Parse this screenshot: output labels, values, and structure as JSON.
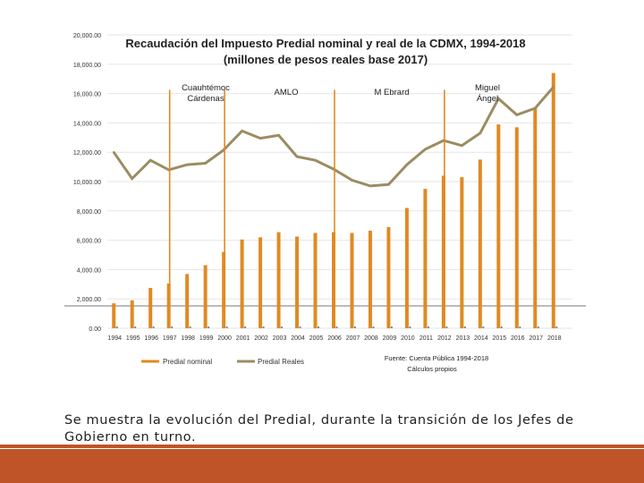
{
  "chart_data": {
    "type": "bar+line",
    "title_line1": "Recaudación del Impuesto Predial nominal y real de la CDMX, 1994-2018",
    "title_line2": "(millones de pesos reales base 2017)",
    "categories": [
      "1994",
      "1995",
      "1996",
      "1997",
      "1998",
      "1999",
      "2000",
      "2001",
      "2002",
      "2003",
      "2004",
      "2005",
      "2006",
      "2007",
      "2008",
      "2009",
      "2010",
      "2011",
      "2012",
      "2013",
      "2014",
      "2015",
      "2016",
      "2017",
      "2018"
    ],
    "series": [
      {
        "name": "Predial nominal",
        "type": "bar",
        "color": "#e08a23",
        "values": [
          1700,
          1900,
          2750,
          3050,
          3700,
          4300,
          5200,
          6050,
          6200,
          6550,
          6250,
          6500,
          6550,
          6500,
          6650,
          6900,
          8200,
          9500,
          10400,
          10300,
          11500,
          13900,
          13700,
          15000,
          17400
        ]
      },
      {
        "name": "Predial Reales",
        "type": "line",
        "color": "#9b8c62",
        "values": [
          12000,
          10200,
          11450,
          10800,
          11150,
          11250,
          12150,
          13450,
          12950,
          13150,
          11700,
          11450,
          10850,
          10100,
          9700,
          9800,
          11150,
          12200,
          12800,
          12450,
          13300,
          15650,
          14550,
          15000,
          16450
        ]
      }
    ],
    "ylim": [
      0,
      20000
    ],
    "yticks": [
      "0.00",
      "2,000.00",
      "4,000.00",
      "6,000.00",
      "8,000.00",
      "10,000.00",
      "12,000.00",
      "14,000.00",
      "16,000.00",
      "18,000.00",
      "20,000.00"
    ],
    "annotations": [
      {
        "text": "Cuauhtémoc Cárdenas",
        "line1": "Cuauhtémoc",
        "line2": "Cárdenas",
        "year": "1997"
      },
      {
        "text": "AMLO",
        "line1": "AMLO",
        "line2": "",
        "year": "2000"
      },
      {
        "text": "M Ebrard",
        "line1": "M Ebrard",
        "line2": "",
        "year": "2006"
      },
      {
        "text": "Miguel Ángel",
        "line1": "Miguel",
        "line2": "Ángel",
        "year": "2012"
      }
    ],
    "legend": [
      "Predial nominal",
      "Predial Reales"
    ],
    "source_line1": "Fuente: Cuenta Pública 1994-2018",
    "source_line2": "Cálculos propios"
  },
  "caption": "Se muestra la evolución del Predial, durante la transición de los Jefes de Gobierno en turno.",
  "theme": {
    "band_color": "#bf5428",
    "band_thin_color": "#bf5428"
  }
}
